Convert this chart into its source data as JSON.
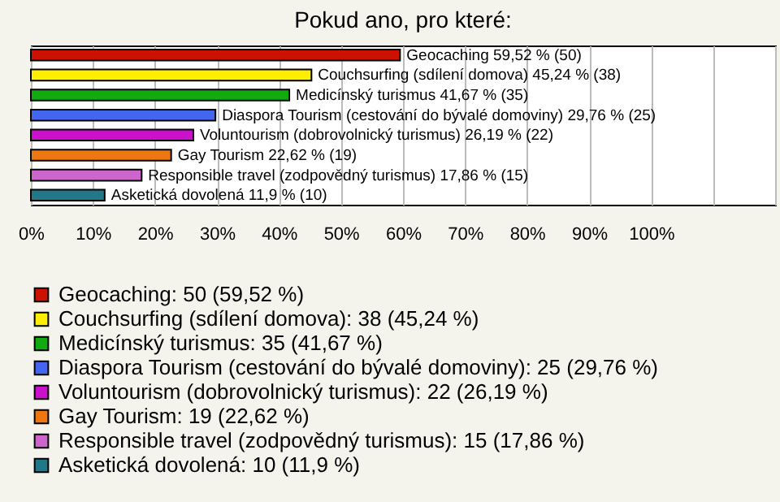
{
  "chart_data": {
    "type": "bar",
    "orientation": "horizontal",
    "title": "Pokud ano, pro které:",
    "categories": [
      null,
      null,
      null,
      null,
      null,
      null,
      null,
      null
    ],
    "series": [
      {
        "name": "Geocaching: 50 (59,52 %)",
        "color": "#cc1100",
        "values": [
          59.52,
          null,
          null,
          null,
          null,
          null,
          null,
          null
        ],
        "value_labels": [
          "Geocaching 59,52 % (50)",
          null,
          null,
          null,
          null,
          null,
          null,
          null
        ]
      },
      {
        "name": "Couchsurfing (sdílení domova): 38 (45,24 %)",
        "color": "#ffee00",
        "values": [
          null,
          45.24,
          null,
          null,
          null,
          null,
          null,
          null
        ],
        "value_labels": [
          null,
          "Couchsurfing (sdílení domova) 45,24 % (38)",
          null,
          null,
          null,
          null,
          null,
          null
        ]
      },
      {
        "name": "Medicínský turismus: 35 (41,67 %)",
        "color": "#11aa11",
        "values": [
          null,
          null,
          41.67,
          null,
          null,
          null,
          null,
          null
        ],
        "value_labels": [
          null,
          null,
          "Medicínský turismus 41,67 % (35)",
          null,
          null,
          null,
          null,
          null
        ]
      },
      {
        "name": "Diaspora Tourism (cestování do bývalé domoviny): 25 (29,76 %)",
        "color": "#4466ee",
        "values": [
          null,
          null,
          null,
          29.76,
          null,
          null,
          null,
          null
        ],
        "value_labels": [
          null,
          null,
          null,
          "Diaspora Tourism (cestování do bývalé domoviny) 29,76 % (25)",
          null,
          null,
          null,
          null
        ]
      },
      {
        "name": "Voluntourism (dobrovolnický turismus): 22 (26,19 %)",
        "color": "#cc11cc",
        "values": [
          null,
          null,
          null,
          null,
          26.19,
          null,
          null,
          null
        ],
        "value_labels": [
          null,
          null,
          null,
          null,
          "Voluntourism (dobrovolnický turismus) 26,19 % (22)",
          null,
          null,
          null
        ]
      },
      {
        "name": "Gay Tourism: 19 (22,62 %)",
        "color": "#ee7711",
        "values": [
          null,
          null,
          null,
          null,
          null,
          22.62,
          null,
          null
        ],
        "value_labels": [
          null,
          null,
          null,
          null,
          null,
          "Gay Tourism 22,62 % (19)",
          null,
          null
        ]
      },
      {
        "name": "Responsible travel (zodpovědný turismus): 15 (17,86 %)",
        "color": "#cc66cc",
        "values": [
          null,
          null,
          null,
          null,
          null,
          null,
          17.86,
          null
        ],
        "value_labels": [
          null,
          null,
          null,
          null,
          null,
          null,
          "Responsible travel (zodpovědný turismus) 17,86 % (15)",
          null
        ]
      },
      {
        "name": "Asketická dovolená: 10 (11,9 %)",
        "color": "#227788",
        "values": [
          null,
          null,
          null,
          null,
          null,
          null,
          null,
          11.9
        ],
        "value_labels": [
          null,
          null,
          null,
          null,
          null,
          null,
          null,
          "Asketická dovolená 11,9 % (10)"
        ]
      }
    ],
    "xlim": [
      0,
      120
    ],
    "xticks": [
      {
        "value": 0,
        "label": "0%"
      },
      {
        "value": 10,
        "label": "10%"
      },
      {
        "value": 20,
        "label": "20%"
      },
      {
        "value": 30,
        "label": "30%"
      },
      {
        "value": 40,
        "label": "40%"
      },
      {
        "value": 50,
        "label": "50%"
      },
      {
        "value": 60,
        "label": "60%"
      },
      {
        "value": 70,
        "label": "70%"
      },
      {
        "value": 80,
        "label": "80%"
      },
      {
        "value": 90,
        "label": "90%"
      },
      {
        "value": 100,
        "label": "100%"
      },
      {
        "value": 110,
        "label": null
      },
      {
        "value": 120,
        "label": null
      }
    ],
    "grid": "x",
    "tick_labels": "x",
    "legend": "bottom"
  }
}
